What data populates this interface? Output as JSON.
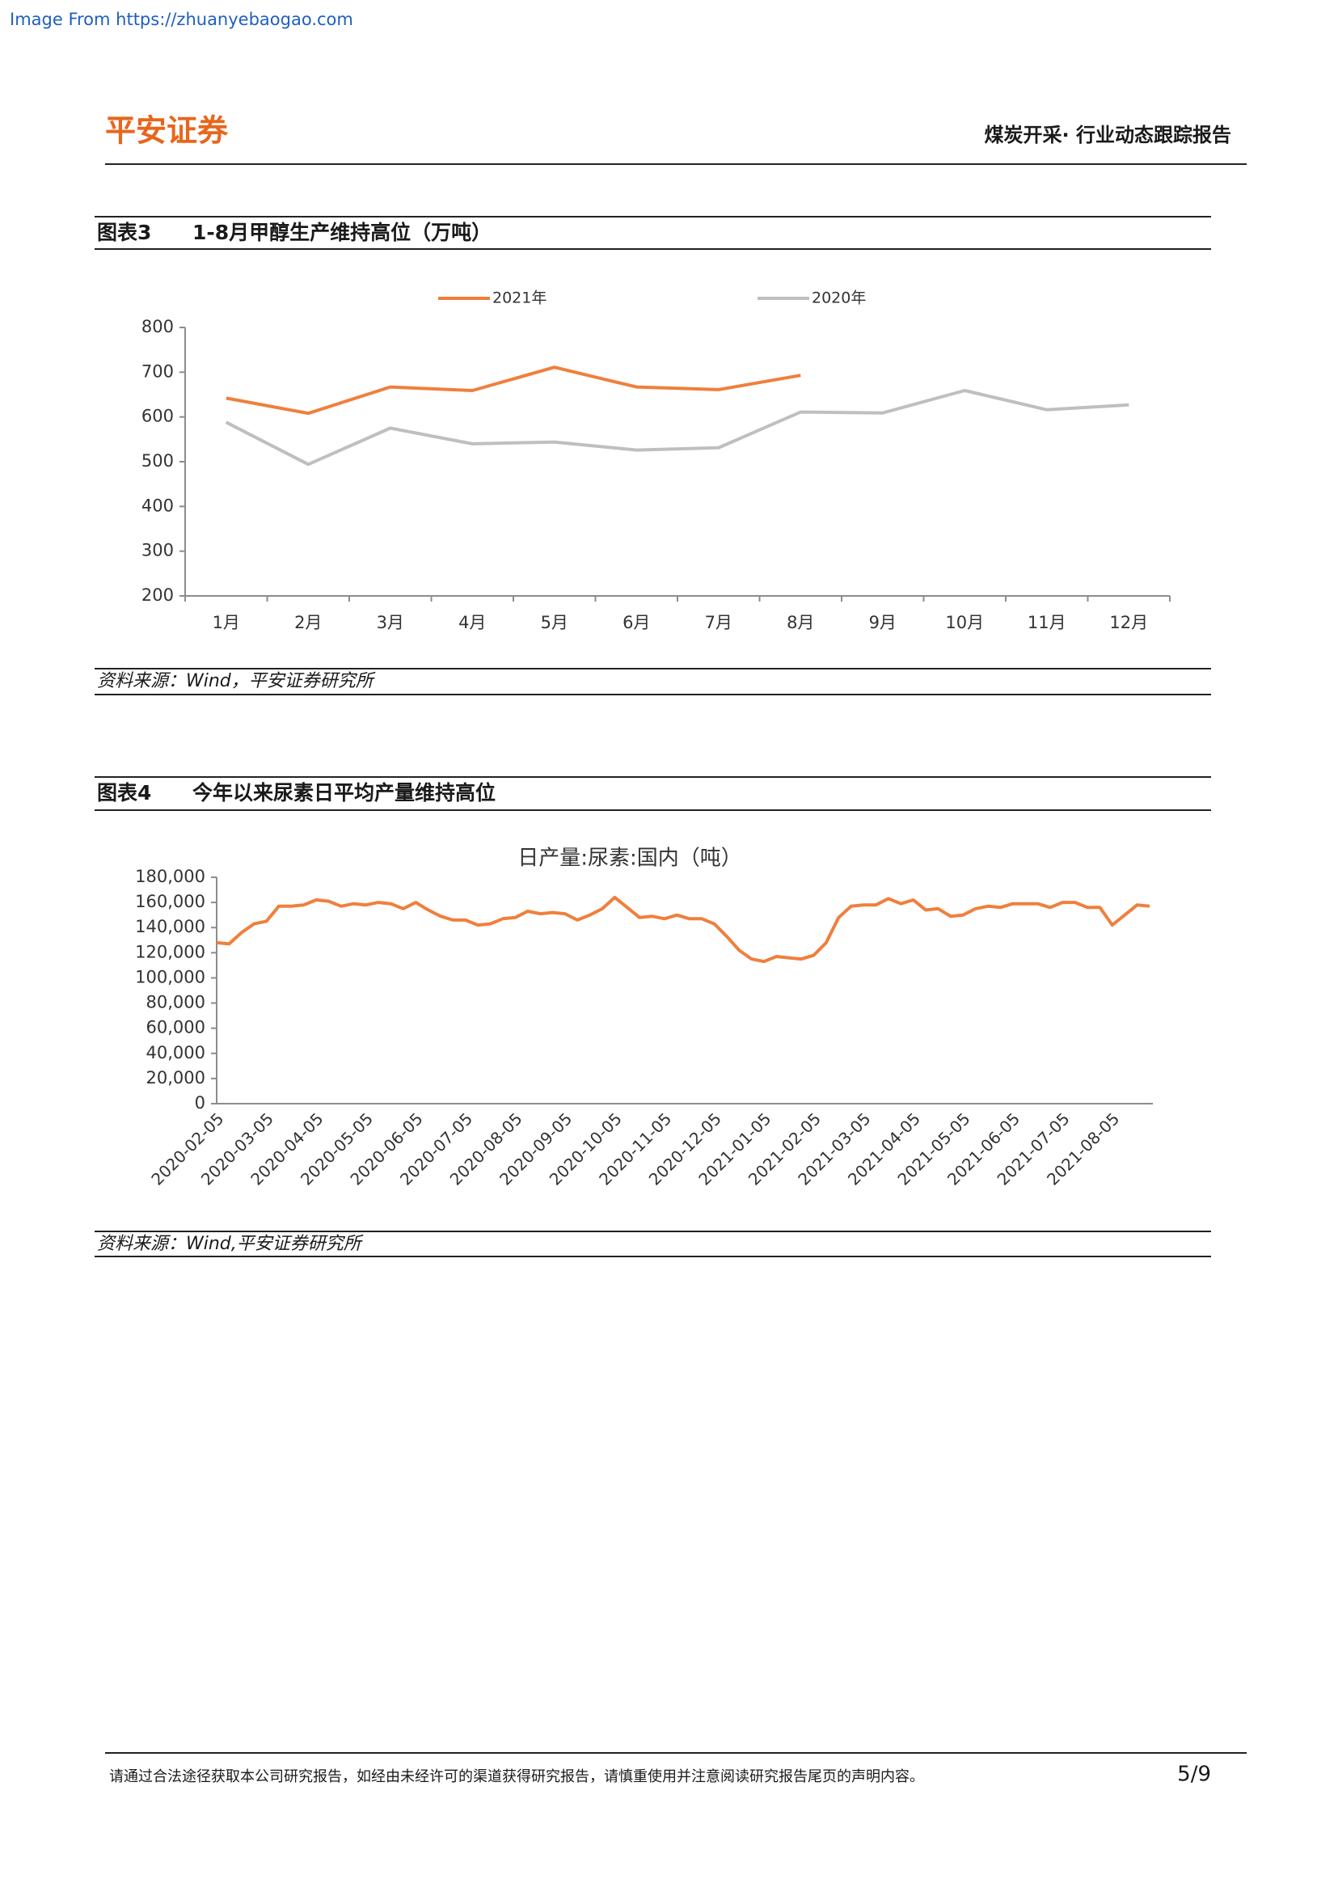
{
  "watermark": "Image From https://zhuanyebaogao.com",
  "header": {
    "logo": "平安证券",
    "title": "煤炭开采· 行业动态跟踪报告"
  },
  "chart_data": [
    {
      "type": "line",
      "caption": {
        "label": "图表3",
        "text": "1-8月甲醇生产维持高位（万吨）"
      },
      "categories": [
        "1月",
        "2月",
        "3月",
        "4月",
        "5月",
        "6月",
        "7月",
        "8月",
        "9月",
        "10月",
        "11月",
        "12月"
      ],
      "series": [
        {
          "name": "2021年",
          "color": "#f07f3c",
          "values": [
            642,
            608,
            667,
            659,
            711,
            667,
            661,
            693,
            null,
            null,
            null,
            null
          ]
        },
        {
          "name": "2020年",
          "color": "#bfbfbf",
          "values": [
            588,
            494,
            575,
            540,
            544,
            526,
            531,
            611,
            609,
            659,
            616,
            627
          ]
        }
      ],
      "ylim": [
        200,
        800
      ],
      "yticks": [
        200,
        300,
        400,
        500,
        600,
        700,
        800
      ],
      "legend": "top",
      "source": "资料来源：Wind，平安证券研究所"
    },
    {
      "type": "line",
      "caption": {
        "label": "图表4",
        "text": "今年以来尿素日平均产量维持高位"
      },
      "title": "日产量:尿素:国内（吨）",
      "categories": [
        "2020-02-05",
        null,
        null,
        null,
        "2020-03-05",
        null,
        null,
        null,
        "2020-04-05",
        null,
        null,
        null,
        "2020-05-05",
        null,
        null,
        null,
        "2020-06-05",
        null,
        null,
        null,
        "2020-07-05",
        null,
        null,
        null,
        "2020-08-05",
        null,
        null,
        null,
        "2020-09-05",
        null,
        null,
        null,
        "2020-10-05",
        null,
        null,
        null,
        "2020-11-05",
        null,
        null,
        null,
        "2020-12-05",
        null,
        null,
        null,
        "2021-01-05",
        null,
        null,
        null,
        "2021-02-05",
        null,
        null,
        null,
        "2021-03-05",
        null,
        null,
        null,
        "2021-04-05",
        null,
        null,
        null,
        "2021-05-05",
        null,
        null,
        null,
        "2021-06-05",
        null,
        null,
        null,
        "2021-07-05",
        null,
        null,
        null,
        "2021-08-05",
        null,
        null,
        null
      ],
      "color": "#f07f3c",
      "values": [
        128000,
        127000,
        136000,
        143000,
        145000,
        157000,
        157000,
        158000,
        162000,
        161000,
        157000,
        159000,
        158000,
        160000,
        159000,
        155000,
        160000,
        154000,
        149000,
        146000,
        146000,
        142000,
        143000,
        147000,
        148000,
        153000,
        151000,
        152000,
        151000,
        146000,
        150000,
        155000,
        164000,
        156000,
        148000,
        149000,
        147000,
        150000,
        147000,
        147000,
        143000,
        133000,
        122000,
        115000,
        113000,
        117000,
        116000,
        115000,
        118000,
        128000,
        148000,
        157000,
        158000,
        158000,
        163000,
        159000,
        162000,
        154000,
        155000,
        149000,
        150000,
        155000,
        157000,
        156000,
        159000,
        159000,
        159000,
        156000,
        160000,
        160000,
        156000,
        156000,
        142000,
        150000,
        158000,
        157000
      ],
      "ylim": [
        0,
        180000
      ],
      "yticks": [
        0,
        {
          "value": 20000,
          "label": "20,000"
        },
        {
          "value": 40000,
          "label": "40,000"
        },
        {
          "value": 60000,
          "label": "60,000"
        },
        {
          "value": 80000,
          "label": "80,000"
        },
        {
          "value": 100000,
          "label": "100,000"
        },
        {
          "value": 120000,
          "label": "120,000"
        },
        {
          "value": 140000,
          "label": "140,000"
        },
        {
          "value": 160000,
          "label": "160,000"
        },
        {
          "value": 180000,
          "label": "180,000"
        }
      ],
      "source": "资料来源：Wind,平安证券研究所"
    }
  ],
  "footer": {
    "disclaimer": "请通过合法途径获取本公司研究报告，如经由未经许可的渠道获得研究报告，请慎重使用并注意阅读研究报告尾页的声明内容。",
    "page": "5/9"
  }
}
